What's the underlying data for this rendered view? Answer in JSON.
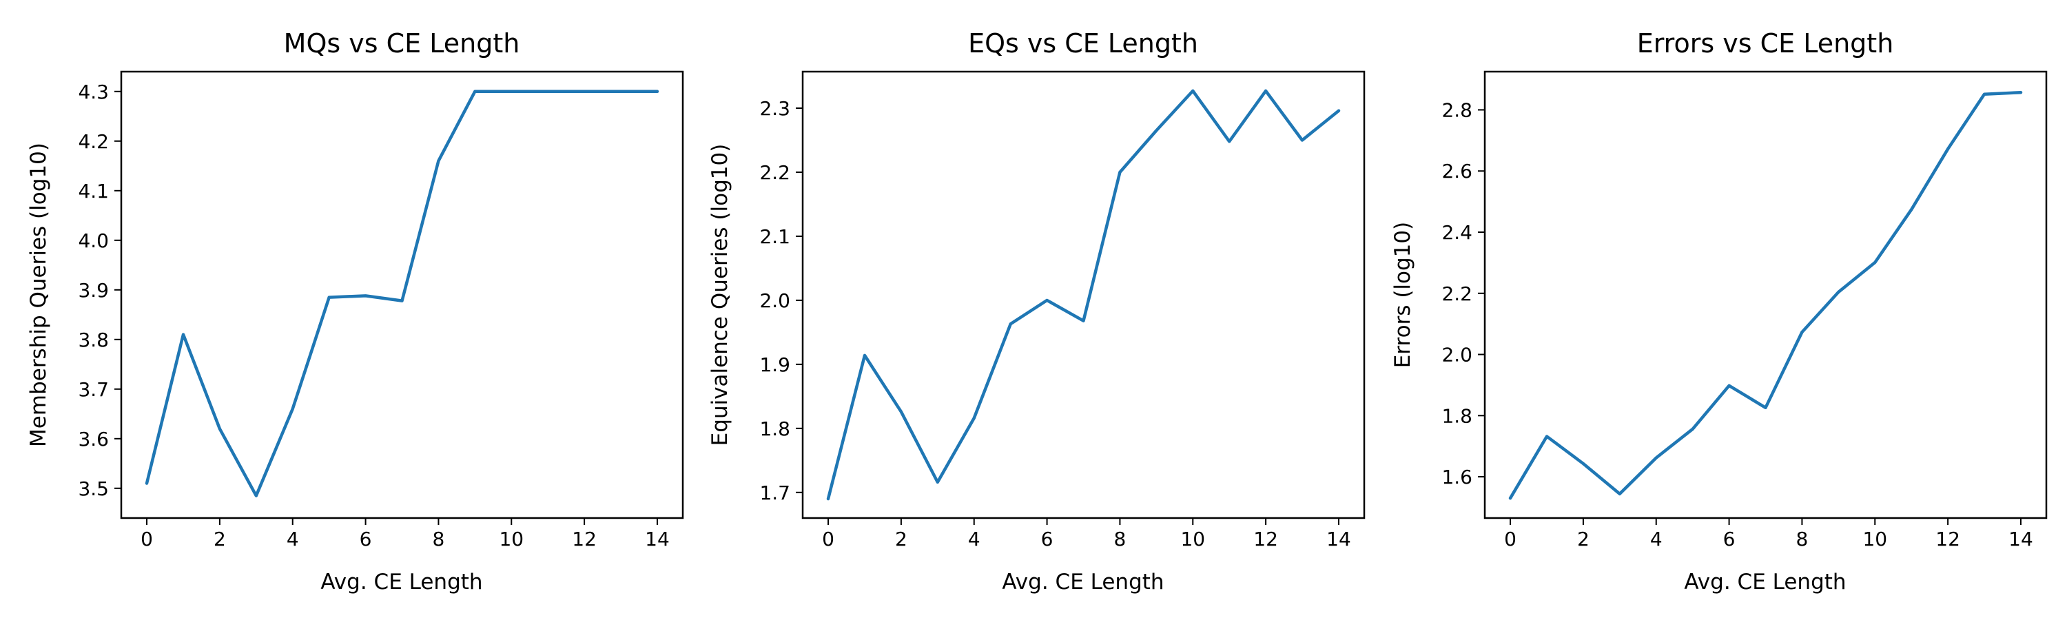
{
  "chart_data": [
    {
      "type": "line",
      "title": "MQs vs CE Length",
      "xlabel": "Avg. CE Length",
      "ylabel": "Membership Queries (log10)",
      "xlim": [
        -0.7,
        14.7
      ],
      "ylim": [
        3.44,
        4.34
      ],
      "xticks": [
        0,
        2,
        4,
        6,
        8,
        10,
        12,
        14
      ],
      "yticks": [
        3.5,
        3.6,
        3.7,
        3.8,
        3.9,
        4.0,
        4.1,
        4.2,
        4.3
      ],
      "ytick_labels": [
        "3.5",
        "3.6",
        "3.7",
        "3.8",
        "3.9",
        "4.0",
        "4.1",
        "4.2",
        "4.3"
      ],
      "x": [
        0,
        1,
        2,
        3,
        4,
        5,
        6,
        7,
        8,
        9,
        10,
        11,
        12,
        13,
        14
      ],
      "y": [
        3.51,
        3.81,
        3.62,
        3.485,
        3.66,
        3.885,
        3.888,
        3.878,
        4.16,
        4.3,
        4.3,
        4.3,
        4.3,
        4.3,
        4.3
      ],
      "color": "#1f77b4",
      "grid": false,
      "legend": "none"
    },
    {
      "type": "line",
      "title": "EQs vs CE Length",
      "xlabel": "Avg. CE Length",
      "ylabel": "Equivalence Queries (log10)",
      "xlim": [
        -0.7,
        14.7
      ],
      "ylim": [
        1.66,
        2.357
      ],
      "xticks": [
        0,
        2,
        4,
        6,
        8,
        10,
        12,
        14
      ],
      "yticks": [
        1.7,
        1.8,
        1.9,
        2.0,
        2.1,
        2.2,
        2.3
      ],
      "ytick_labels": [
        "1.7",
        "1.8",
        "1.9",
        "2.0",
        "2.1",
        "2.2",
        "2.3"
      ],
      "x": [
        0,
        1,
        2,
        3,
        4,
        5,
        6,
        7,
        8,
        9,
        10,
        11,
        12,
        13,
        14
      ],
      "y": [
        1.69,
        1.914,
        1.826,
        1.716,
        1.816,
        1.963,
        2.0,
        1.968,
        2.2,
        2.265,
        2.327,
        2.248,
        2.327,
        2.25,
        2.296
      ],
      "color": "#1f77b4",
      "grid": false,
      "legend": "none"
    },
    {
      "type": "line",
      "title": "Errors vs CE Length",
      "xlabel": "Avg. CE Length",
      "ylabel": "Errors (log10)",
      "xlim": [
        -0.7,
        14.7
      ],
      "ylim": [
        1.465,
        2.925
      ],
      "xticks": [
        0,
        2,
        4,
        6,
        8,
        10,
        12,
        14
      ],
      "yticks": [
        1.6,
        1.8,
        2.0,
        2.2,
        2.4,
        2.6,
        2.8
      ],
      "ytick_labels": [
        "1.6",
        "1.8",
        "2.0",
        "2.2",
        "2.4",
        "2.6",
        "2.8"
      ],
      "x": [
        0,
        1,
        2,
        3,
        4,
        5,
        6,
        7,
        8,
        9,
        10,
        11,
        12,
        13,
        14
      ],
      "y": [
        1.53,
        1.732,
        1.643,
        1.544,
        1.662,
        1.756,
        1.898,
        1.826,
        2.073,
        2.204,
        2.301,
        2.474,
        2.672,
        2.851,
        2.857
      ],
      "color": "#1f77b4",
      "grid": false,
      "legend": "none"
    }
  ]
}
